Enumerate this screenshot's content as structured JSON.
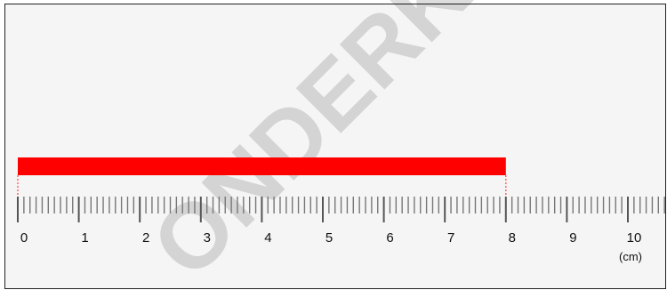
{
  "ruler": {
    "unit_label": "(cm)",
    "min": 0,
    "max": 10,
    "visible_max": 10.8,
    "minor_step": 0.1,
    "major_step": 1,
    "tick_labels": [
      "0",
      "1",
      "2",
      "3",
      "4",
      "5",
      "6",
      "7",
      "8",
      "9",
      "10"
    ]
  },
  "measured_bar": {
    "start": 0,
    "end": 8,
    "color": "#ff0000",
    "marker_color": "#ff6666"
  },
  "watermark": {
    "text": "ONDERK"
  }
}
